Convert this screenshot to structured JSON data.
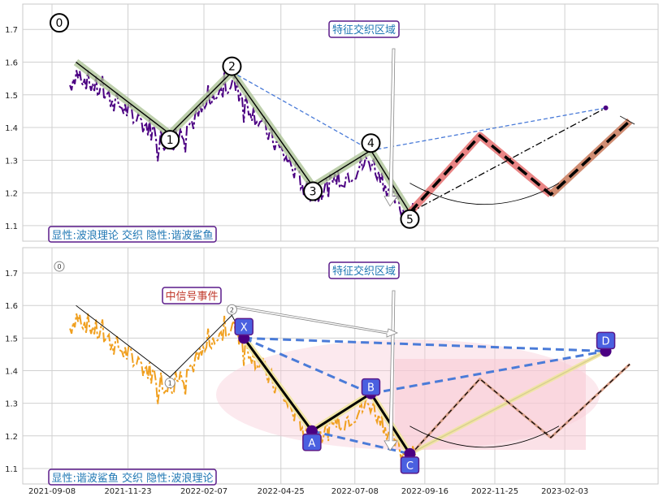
{
  "chart_data": [
    {
      "type": "line",
      "panel": "top",
      "yticks": [
        "1.1",
        "1.2",
        "1.3",
        "1.4",
        "1.5",
        "1.6",
        "1.7"
      ],
      "ylim": [
        1.06,
        1.77
      ],
      "grid": true,
      "caption": "显性:波浪理论 交织 隐性:谐波鲨鱼",
      "region_label": "特征交织区域",
      "wave_points": [
        {
          "label": "0",
          "date": "2021-10-02",
          "value": 1.6
        },
        {
          "label": "1",
          "date": "2022-01-04",
          "value": 1.38
        },
        {
          "label": "2",
          "date": "2022-03-07",
          "value": 1.57
        },
        {
          "label": "3",
          "date": "2022-05-27",
          "value": 1.22
        },
        {
          "label": "4",
          "date": "2022-07-24",
          "value": 1.33
        },
        {
          "label": "5",
          "date": "2022-09-01",
          "value": 1.14
        }
      ],
      "wave_marker_value_0": 1.72,
      "projection": [
        {
          "date": "2022-09-01",
          "value": 1.14
        },
        {
          "date": "2022-11-10",
          "value": 1.375
        },
        {
          "date": "2023-01-20",
          "value": 1.195
        },
        {
          "date": "2023-04-09",
          "value": 1.42
        }
      ],
      "extension_points": [
        {
          "date": "2023-03-16",
          "value": 1.46
        }
      ]
    },
    {
      "type": "line",
      "panel": "bottom",
      "yticks": [
        "1.1",
        "1.2",
        "1.3",
        "1.4",
        "1.5",
        "1.6",
        "1.7"
      ],
      "ylim": [
        1.06,
        1.77
      ],
      "grid": true,
      "caption": "显性:谐波鲨鱼 交织 隐性:波浪理论",
      "region_label": "特征交织区域",
      "signal_label": "中信号事件",
      "wave_points": [
        {
          "label": "0",
          "date": "2021-10-02",
          "value": 1.6
        },
        {
          "label": "1",
          "date": "2022-01-04",
          "value": 1.38
        },
        {
          "label": "2",
          "date": "2022-03-07",
          "value": 1.57
        }
      ],
      "harmonic_points": [
        {
          "label": "X",
          "date": "2022-03-19",
          "value": 1.5
        },
        {
          "label": "A",
          "date": "2022-05-26",
          "value": 1.215
        },
        {
          "label": "B",
          "date": "2022-07-24",
          "value": 1.33
        },
        {
          "label": "C",
          "date": "2022-09-01",
          "value": 1.145
        },
        {
          "label": "D",
          "date": "2023-03-16",
          "value": 1.46
        }
      ]
    }
  ],
  "x_axis": {
    "tick_labels": [
      "2021-09-08",
      "2021-11-23",
      "2022-02-07",
      "2022-04-25",
      "2022-07-08",
      "2022-09-16",
      "2022-11-25",
      "2023-02-03"
    ]
  },
  "colors": {
    "price_top": "#4b0082",
    "price_bottom": "#f0a020",
    "wave_glow": "#a8c090",
    "projection": "#e57070",
    "harmonic_main": "#4a7bd8",
    "label_box": "#4a60e0",
    "label_border": "#5a1a8a",
    "caption_text": "#1f77b4",
    "signal_text": "#c0392b",
    "pattern_area": "#f8c8d4"
  }
}
